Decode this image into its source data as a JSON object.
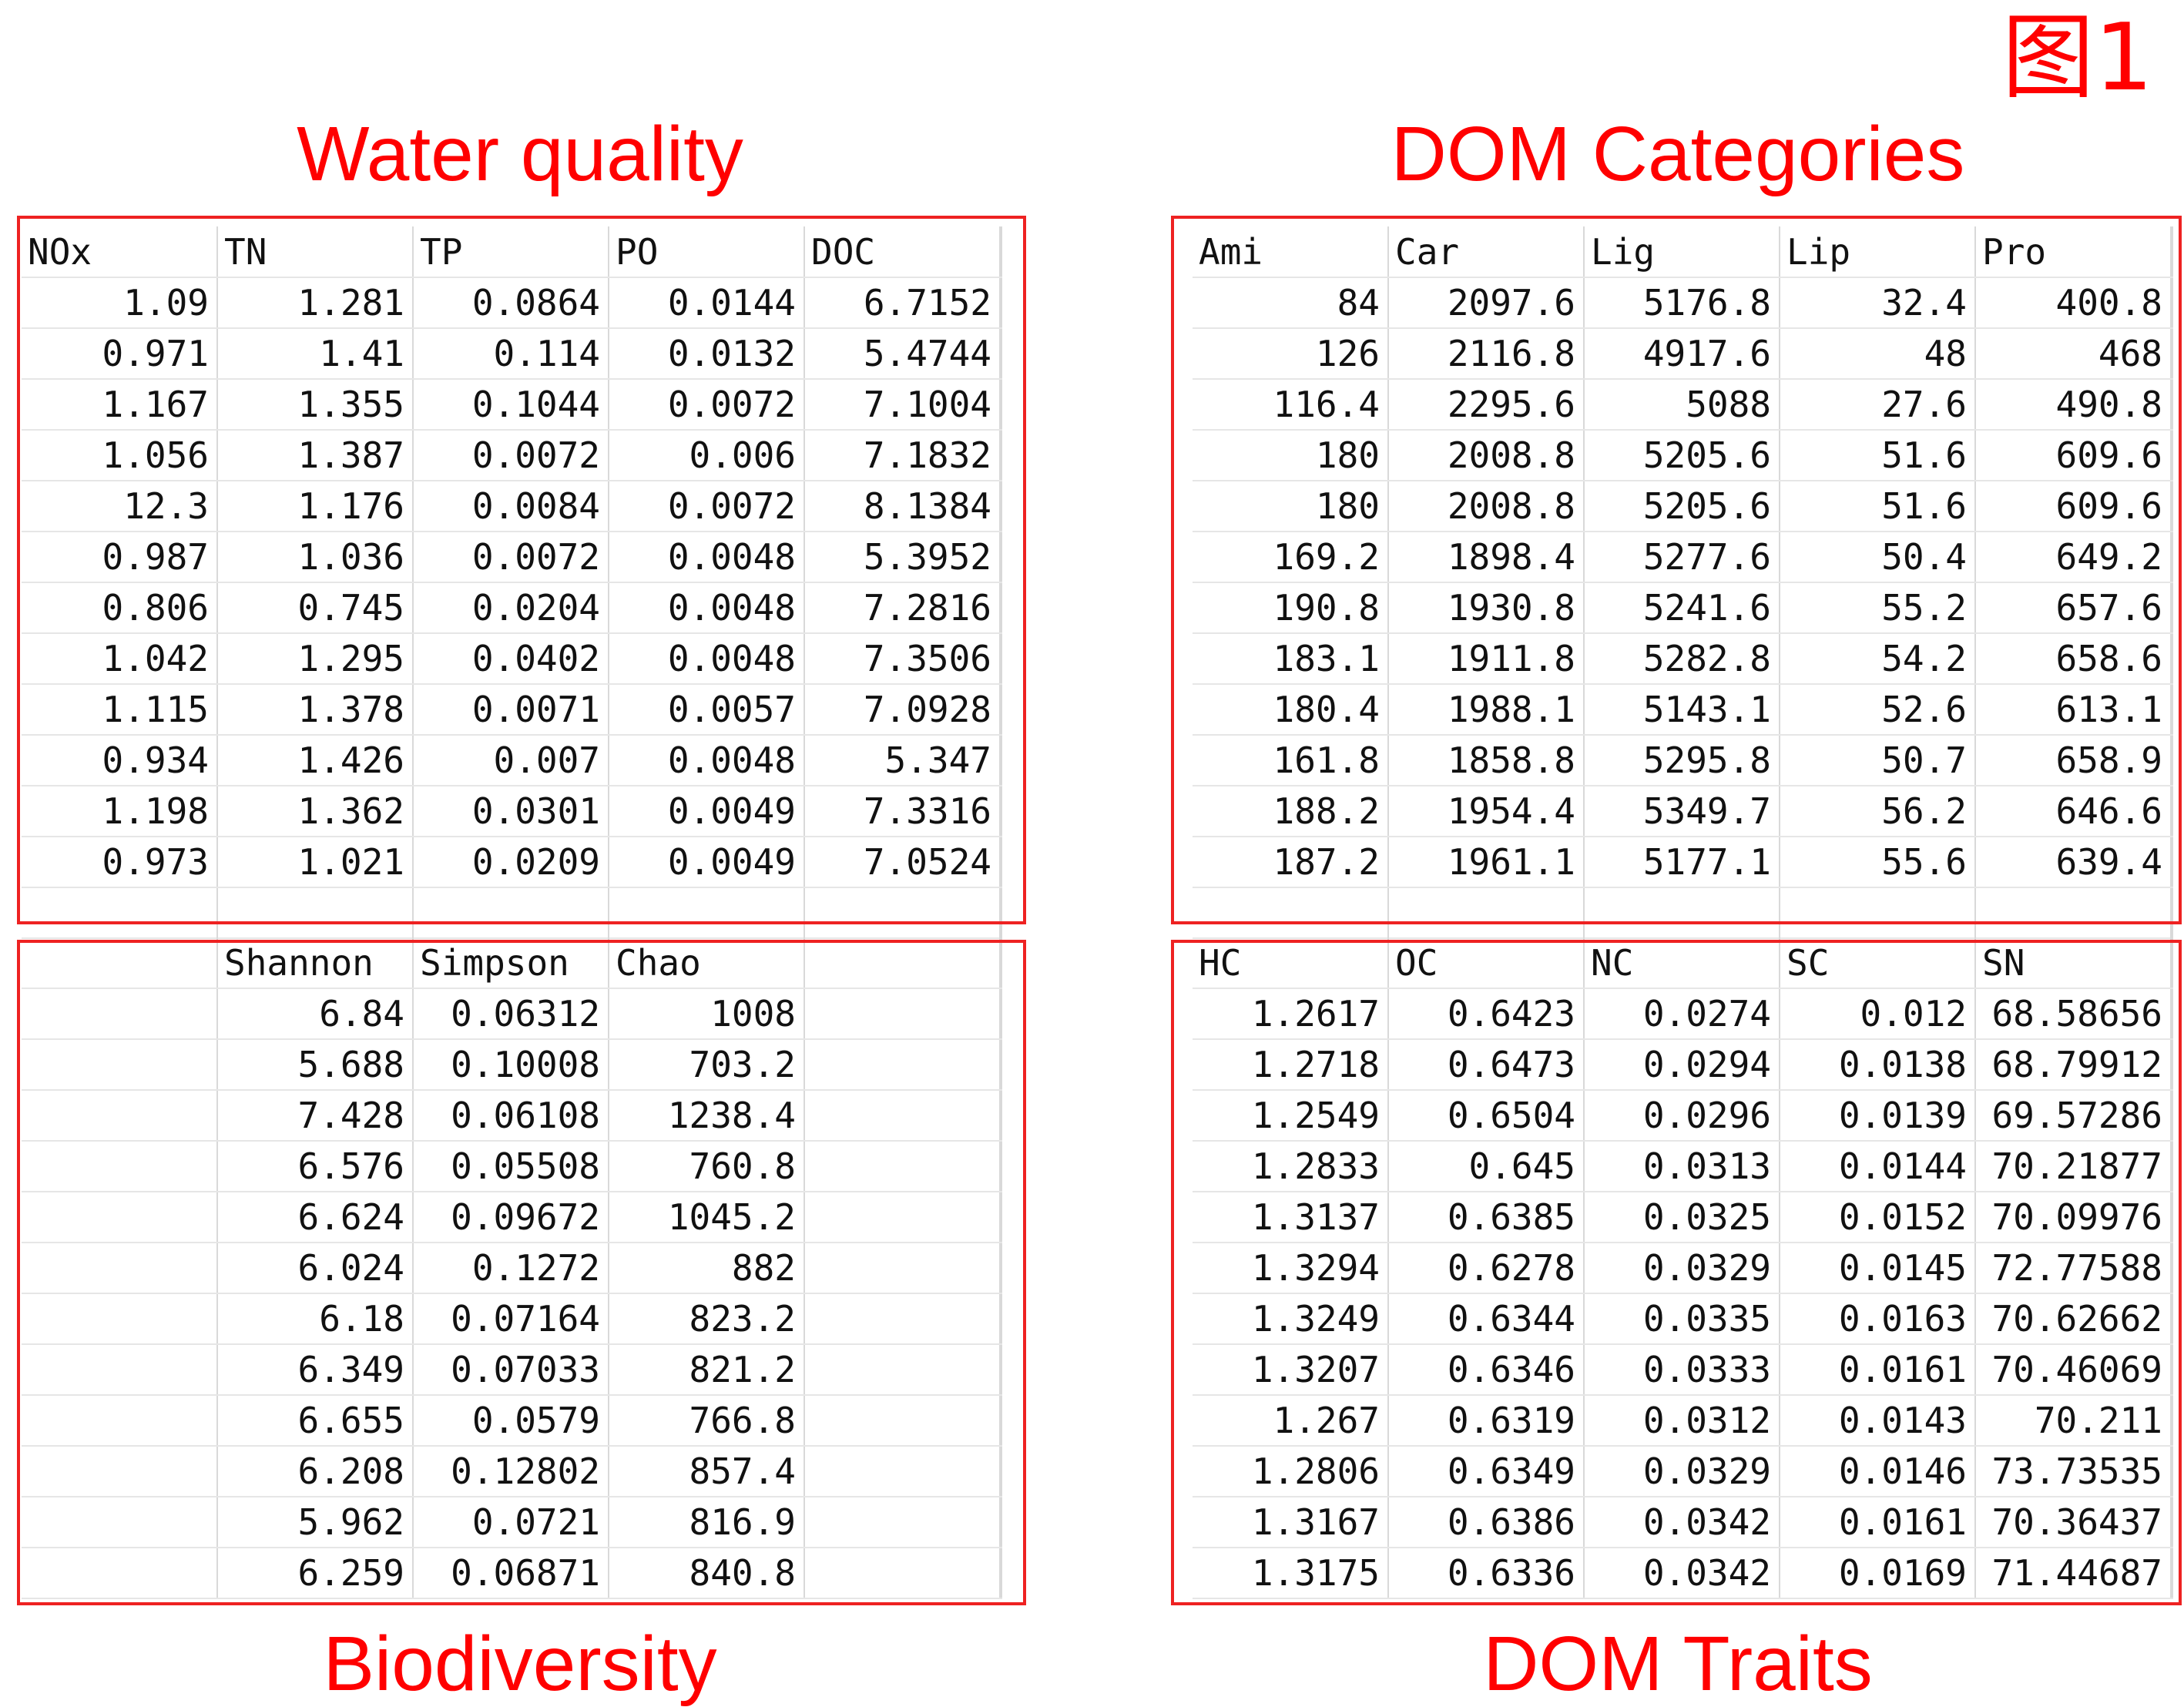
{
  "figure_label": "图1",
  "water_quality": {
    "title": "Water quality",
    "headers": [
      "NOx",
      "TN",
      "TP",
      "PO",
      "DOC"
    ],
    "rows": [
      [
        "1.09",
        "1.281",
        "0.0864",
        "0.0144",
        "6.7152"
      ],
      [
        "0.971",
        "1.41",
        "0.114",
        "0.0132",
        "5.4744"
      ],
      [
        "1.167",
        "1.355",
        "0.1044",
        "0.0072",
        "7.1004"
      ],
      [
        "1.056",
        "1.387",
        "0.0072",
        "0.006",
        "7.1832"
      ],
      [
        "12.3",
        "1.176",
        "0.0084",
        "0.0072",
        "8.1384"
      ],
      [
        "0.987",
        "1.036",
        "0.0072",
        "0.0048",
        "5.3952"
      ],
      [
        "0.806",
        "0.745",
        "0.0204",
        "0.0048",
        "7.2816"
      ],
      [
        "1.042",
        "1.295",
        "0.0402",
        "0.0048",
        "7.3506"
      ],
      [
        "1.115",
        "1.378",
        "0.0071",
        "0.0057",
        "7.0928"
      ],
      [
        "0.934",
        "1.426",
        "0.007",
        "0.0048",
        "5.347"
      ],
      [
        "1.198",
        "1.362",
        "0.0301",
        "0.0049",
        "7.3316"
      ],
      [
        "0.973",
        "1.021",
        "0.0209",
        "0.0049",
        "7.0524"
      ]
    ]
  },
  "dom_categories": {
    "title": "DOM Categories",
    "headers": [
      "Ami",
      "Car",
      "Lig",
      "Lip",
      "Pro"
    ],
    "rows": [
      [
        "84",
        "2097.6",
        "5176.8",
        "32.4",
        "400.8"
      ],
      [
        "126",
        "2116.8",
        "4917.6",
        "48",
        "468"
      ],
      [
        "116.4",
        "2295.6",
        "5088",
        "27.6",
        "490.8"
      ],
      [
        "180",
        "2008.8",
        "5205.6",
        "51.6",
        "609.6"
      ],
      [
        "180",
        "2008.8",
        "5205.6",
        "51.6",
        "609.6"
      ],
      [
        "169.2",
        "1898.4",
        "5277.6",
        "50.4",
        "649.2"
      ],
      [
        "190.8",
        "1930.8",
        "5241.6",
        "55.2",
        "657.6"
      ],
      [
        "183.1",
        "1911.8",
        "5282.8",
        "54.2",
        "658.6"
      ],
      [
        "180.4",
        "1988.1",
        "5143.1",
        "52.6",
        "613.1"
      ],
      [
        "161.8",
        "1858.8",
        "5295.8",
        "50.7",
        "658.9"
      ],
      [
        "188.2",
        "1954.4",
        "5349.7",
        "56.2",
        "646.6"
      ],
      [
        "187.2",
        "1961.1",
        "5177.1",
        "55.6",
        "639.4"
      ]
    ]
  },
  "biodiversity": {
    "title": "Biodiversity",
    "headers": [
      "",
      "Shannon",
      "Simpson",
      "Chao",
      ""
    ],
    "rows": [
      [
        "",
        "6.84",
        "0.06312",
        "1008",
        ""
      ],
      [
        "",
        "5.688",
        "0.10008",
        "703.2",
        ""
      ],
      [
        "",
        "7.428",
        "0.06108",
        "1238.4",
        ""
      ],
      [
        "",
        "6.576",
        "0.05508",
        "760.8",
        ""
      ],
      [
        "",
        "6.624",
        "0.09672",
        "1045.2",
        ""
      ],
      [
        "",
        "6.024",
        "0.1272",
        "882",
        ""
      ],
      [
        "",
        "6.18",
        "0.07164",
        "823.2",
        ""
      ],
      [
        "",
        "6.349",
        "0.07033",
        "821.2",
        ""
      ],
      [
        "",
        "6.655",
        "0.0579",
        "766.8",
        ""
      ],
      [
        "",
        "6.208",
        "0.12802",
        "857.4",
        ""
      ],
      [
        "",
        "5.962",
        "0.0721",
        "816.9",
        ""
      ],
      [
        "",
        "6.259",
        "0.06871",
        "840.8",
        ""
      ]
    ]
  },
  "dom_traits": {
    "title": "DOM Traits",
    "headers": [
      "HC",
      "OC",
      "NC",
      "SC",
      "SN"
    ],
    "rows": [
      [
        "1.2617",
        "0.6423",
        "0.0274",
        "0.012",
        "68.58656"
      ],
      [
        "1.2718",
        "0.6473",
        "0.0294",
        "0.0138",
        "68.79912"
      ],
      [
        "1.2549",
        "0.6504",
        "0.0296",
        "0.0139",
        "69.57286"
      ],
      [
        "1.2833",
        "0.645",
        "0.0313",
        "0.0144",
        "70.21877"
      ],
      [
        "1.3137",
        "0.6385",
        "0.0325",
        "0.0152",
        "70.09976"
      ],
      [
        "1.3294",
        "0.6278",
        "0.0329",
        "0.0145",
        "72.77588"
      ],
      [
        "1.3249",
        "0.6344",
        "0.0335",
        "0.0163",
        "70.62662"
      ],
      [
        "1.3207",
        "0.6346",
        "0.0333",
        "0.0161",
        "70.46069"
      ],
      [
        "1.267",
        "0.6319",
        "0.0312",
        "0.0143",
        "70.211"
      ],
      [
        "1.2806",
        "0.6349",
        "0.0329",
        "0.0146",
        "73.73535"
      ],
      [
        "1.3167",
        "0.6386",
        "0.0342",
        "0.0161",
        "70.36437"
      ],
      [
        "1.3175",
        "0.6336",
        "0.0342",
        "0.0169",
        "71.44687"
      ]
    ]
  }
}
